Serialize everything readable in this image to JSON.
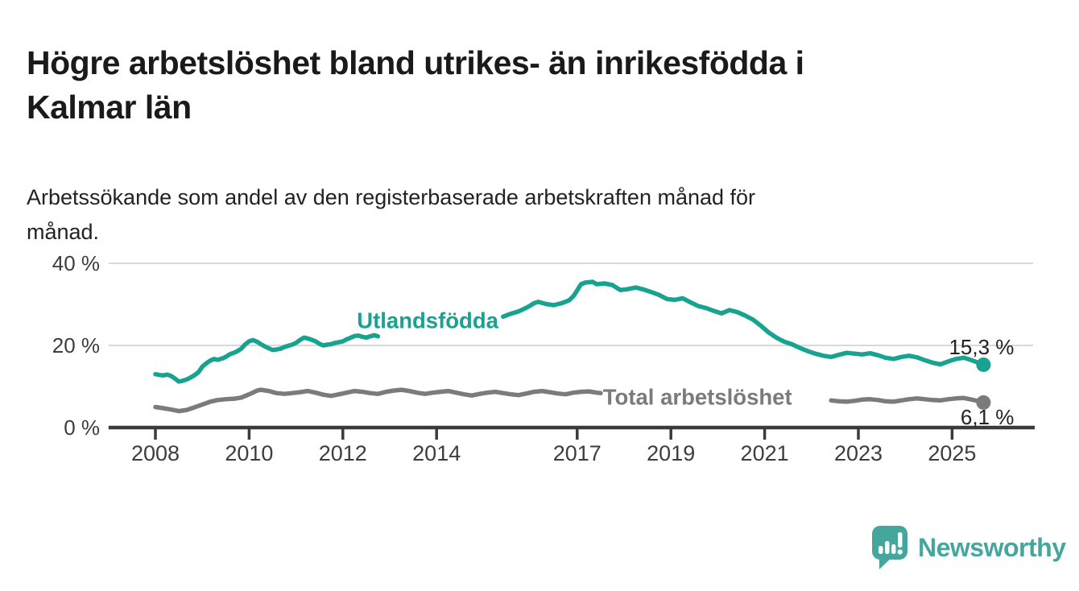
{
  "header": {
    "title_lines": [
      "Högre arbetslöshet bland utrikes- än inrikesfödda i",
      "Kalmar län"
    ],
    "subtitle_lines": [
      "Arbetssökande som andel av den registerbaserade arbetskraften månad för",
      "månad."
    ]
  },
  "colors": {
    "teal_line": "#17a38f",
    "gray_line": "#7b7b7e",
    "axis": "#3b3b3b",
    "grid": "#d9d9d9",
    "tick_label": "#3d3d3d",
    "value_label": "#222222",
    "logo": "#45a69d"
  },
  "chart_data": {
    "type": "line",
    "title": "Högre arbetslöshet bland utrikes- än inrikesfödda i Kalmar län",
    "subtitle": "Arbetssökande som andel av den registerbaserade arbetskraften månad för månad.",
    "unit": "%",
    "grid": "horizontal-only",
    "legend_position": "inline-labels-on-lines",
    "xlim": [
      2007.0,
      2026.8
    ],
    "ylim": [
      0,
      42
    ],
    "yticks": [
      {
        "value": 0,
        "label": "0 %"
      },
      {
        "value": 20,
        "label": "20 %"
      },
      {
        "value": 40,
        "label": "40 %"
      }
    ],
    "xticks": [
      {
        "value": 2008,
        "label": "2008"
      },
      {
        "value": 2010,
        "label": "2010"
      },
      {
        "value": 2012,
        "label": "2012"
      },
      {
        "value": 2014,
        "label": "2014"
      },
      {
        "value": 2017,
        "label": "2017"
      },
      {
        "value": 2019,
        "label": "2019"
      },
      {
        "value": 2021,
        "label": "2021"
      },
      {
        "value": 2023,
        "label": "2023"
      },
      {
        "value": 2025,
        "label": "2025"
      }
    ],
    "series": [
      {
        "name": "Utlandsfödda",
        "color": "#17a38f",
        "end_label": "15,3 %",
        "end_value": 15.3,
        "end_label_pos": "above",
        "label_x": 2012.3,
        "label_y": 24.2,
        "segments": [
          [
            [
              2008,
              13
            ],
            [
              2008.08,
              12.8
            ],
            [
              2008.17,
              12.7
            ],
            [
              2008.25,
              12.9
            ],
            [
              2008.33,
              12.6
            ],
            [
              2008.42,
              11.9
            ],
            [
              2008.5,
              11.2
            ],
            [
              2008.58,
              11.4
            ],
            [
              2008.67,
              11.7
            ],
            [
              2008.75,
              12.2
            ],
            [
              2008.83,
              12.7
            ],
            [
              2008.92,
              13.5
            ],
            [
              2009,
              14.8
            ],
            [
              2009.08,
              15.6
            ],
            [
              2009.17,
              16.3
            ],
            [
              2009.25,
              16.7
            ],
            [
              2009.33,
              16.5
            ],
            [
              2009.42,
              16.8
            ],
            [
              2009.5,
              17.2
            ],
            [
              2009.58,
              17.8
            ],
            [
              2009.67,
              18.2
            ],
            [
              2009.75,
              18.6
            ],
            [
              2009.83,
              19.2
            ],
            [
              2009.92,
              20.3
            ],
            [
              2010,
              21
            ],
            [
              2010.08,
              21.3
            ],
            [
              2010.17,
              20.9
            ],
            [
              2010.25,
              20.3
            ],
            [
              2010.33,
              19.8
            ],
            [
              2010.42,
              19.3
            ],
            [
              2010.5,
              18.9
            ],
            [
              2010.58,
              19
            ],
            [
              2010.67,
              19.2
            ],
            [
              2010.75,
              19.6
            ],
            [
              2010.83,
              19.9
            ],
            [
              2010.92,
              20.2
            ],
            [
              2011,
              20.6
            ],
            [
              2011.08,
              21.3
            ],
            [
              2011.17,
              21.9
            ],
            [
              2011.25,
              21.7
            ],
            [
              2011.33,
              21.4
            ],
            [
              2011.42,
              21
            ],
            [
              2011.5,
              20.4
            ],
            [
              2011.58,
              20
            ],
            [
              2011.67,
              20.2
            ],
            [
              2011.75,
              20.3
            ],
            [
              2011.83,
              20.6
            ],
            [
              2011.92,
              20.8
            ],
            [
              2012,
              21
            ],
            [
              2012.08,
              21.5
            ],
            [
              2012.17,
              21.9
            ],
            [
              2012.25,
              22.3
            ],
            [
              2012.33,
              22.4
            ],
            [
              2012.42,
              22.1
            ],
            [
              2012.5,
              21.9
            ],
            [
              2012.58,
              22.2
            ],
            [
              2012.67,
              22.5
            ],
            [
              2012.75,
              22.2
            ]
          ],
          [
            [
              2015.42,
              27
            ],
            [
              2015.58,
              27.7
            ],
            [
              2015.75,
              28.3
            ],
            [
              2015.92,
              29.2
            ],
            [
              2016,
              29.7
            ],
            [
              2016.08,
              30.3
            ],
            [
              2016.17,
              30.6
            ],
            [
              2016.33,
              30.1
            ],
            [
              2016.5,
              29.8
            ],
            [
              2016.67,
              30.3
            ],
            [
              2016.83,
              31
            ],
            [
              2016.92,
              32
            ],
            [
              2017,
              33.4
            ],
            [
              2017.08,
              34.9
            ],
            [
              2017.17,
              35.3
            ],
            [
              2017.33,
              35.5
            ],
            [
              2017.42,
              34.9
            ],
            [
              2017.58,
              35.1
            ],
            [
              2017.75,
              34.7
            ],
            [
              2017.92,
              33.5
            ],
            [
              2018.08,
              33.7
            ],
            [
              2018.25,
              34.1
            ],
            [
              2018.42,
              33.6
            ],
            [
              2018.58,
              33
            ],
            [
              2018.75,
              32.3
            ],
            [
              2018.92,
              31.3
            ],
            [
              2019.08,
              31.1
            ],
            [
              2019.25,
              31.5
            ],
            [
              2019.42,
              30.5
            ],
            [
              2019.58,
              29.6
            ],
            [
              2019.75,
              29.1
            ],
            [
              2019.92,
              28.4
            ],
            [
              2020.08,
              27.8
            ],
            [
              2020.25,
              28.6
            ],
            [
              2020.42,
              28.1
            ],
            [
              2020.58,
              27.3
            ],
            [
              2020.75,
              26.3
            ],
            [
              2020.92,
              24.8
            ],
            [
              2021.08,
              23.2
            ],
            [
              2021.25,
              21.9
            ],
            [
              2021.42,
              20.9
            ],
            [
              2021.58,
              20.3
            ],
            [
              2021.75,
              19.4
            ],
            [
              2021.92,
              18.6
            ],
            [
              2022.08,
              18
            ],
            [
              2022.25,
              17.5
            ],
            [
              2022.42,
              17.2
            ],
            [
              2022.58,
              17.7
            ],
            [
              2022.75,
              18.2
            ],
            [
              2022.92,
              18
            ],
            [
              2023.08,
              17.8
            ],
            [
              2023.25,
              18.1
            ],
            [
              2023.42,
              17.6
            ],
            [
              2023.58,
              17
            ],
            [
              2023.75,
              16.7
            ],
            [
              2023.92,
              17.2
            ],
            [
              2024.08,
              17.5
            ],
            [
              2024.25,
              17.1
            ],
            [
              2024.42,
              16.4
            ],
            [
              2024.58,
              15.8
            ],
            [
              2024.75,
              15.4
            ],
            [
              2024.92,
              16.1
            ],
            [
              2025.08,
              16.7
            ],
            [
              2025.25,
              17
            ],
            [
              2025.42,
              16.4
            ],
            [
              2025.58,
              15.7
            ],
            [
              2025.67,
              15.3
            ]
          ]
        ]
      },
      {
        "name": "Total arbetslöshet",
        "color": "#7b7b7e",
        "end_label": "6,1 %",
        "end_value": 6.1,
        "end_label_pos": "below",
        "label_x": 2017.55,
        "label_y": 5.6,
        "segments": [
          [
            [
              2008,
              5
            ],
            [
              2008.17,
              4.7
            ],
            [
              2008.33,
              4.4
            ],
            [
              2008.5,
              4
            ],
            [
              2008.67,
              4.3
            ],
            [
              2008.83,
              4.9
            ],
            [
              2009,
              5.6
            ],
            [
              2009.17,
              6.3
            ],
            [
              2009.33,
              6.7
            ],
            [
              2009.5,
              6.9
            ],
            [
              2009.67,
              7
            ],
            [
              2009.83,
              7.3
            ],
            [
              2010,
              8.1
            ],
            [
              2010.17,
              9
            ],
            [
              2010.25,
              9.2
            ],
            [
              2010.42,
              8.9
            ],
            [
              2010.58,
              8.4
            ],
            [
              2010.75,
              8.2
            ],
            [
              2010.92,
              8.4
            ],
            [
              2011.08,
              8.6
            ],
            [
              2011.25,
              8.9
            ],
            [
              2011.42,
              8.5
            ],
            [
              2011.58,
              8
            ],
            [
              2011.75,
              7.7
            ],
            [
              2011.92,
              8.1
            ],
            [
              2012.08,
              8.5
            ],
            [
              2012.25,
              8.9
            ],
            [
              2012.42,
              8.7
            ],
            [
              2012.58,
              8.4
            ],
            [
              2012.75,
              8.2
            ],
            [
              2012.92,
              8.7
            ],
            [
              2013.08,
              9
            ],
            [
              2013.25,
              9.2
            ],
            [
              2013.42,
              8.9
            ],
            [
              2013.58,
              8.5
            ],
            [
              2013.75,
              8.2
            ],
            [
              2013.92,
              8.5
            ],
            [
              2014.08,
              8.7
            ],
            [
              2014.25,
              8.9
            ],
            [
              2014.42,
              8.5
            ],
            [
              2014.58,
              8.1
            ],
            [
              2014.75,
              7.8
            ],
            [
              2014.92,
              8.2
            ],
            [
              2015.08,
              8.5
            ],
            [
              2015.25,
              8.7
            ],
            [
              2015.42,
              8.4
            ],
            [
              2015.58,
              8.1
            ],
            [
              2015.75,
              7.9
            ],
            [
              2015.92,
              8.3
            ],
            [
              2016.08,
              8.7
            ],
            [
              2016.25,
              8.9
            ],
            [
              2016.42,
              8.6
            ],
            [
              2016.58,
              8.3
            ],
            [
              2016.75,
              8.1
            ],
            [
              2016.92,
              8.5
            ],
            [
              2017.08,
              8.7
            ],
            [
              2017.25,
              8.8
            ],
            [
              2017.42,
              8.5
            ],
            [
              2017.5,
              8.4
            ]
          ],
          [
            [
              2022.42,
              6.6
            ],
            [
              2022.58,
              6.4
            ],
            [
              2022.75,
              6.3
            ],
            [
              2022.92,
              6.5
            ],
            [
              2023.08,
              6.8
            ],
            [
              2023.25,
              6.9
            ],
            [
              2023.42,
              6.7
            ],
            [
              2023.58,
              6.4
            ],
            [
              2023.75,
              6.3
            ],
            [
              2023.92,
              6.6
            ],
            [
              2024.08,
              6.9
            ],
            [
              2024.25,
              7.1
            ],
            [
              2024.42,
              6.9
            ],
            [
              2024.58,
              6.7
            ],
            [
              2024.75,
              6.6
            ],
            [
              2024.92,
              6.9
            ],
            [
              2025.08,
              7.1
            ],
            [
              2025.25,
              7.2
            ],
            [
              2025.42,
              6.8
            ],
            [
              2025.58,
              6.4
            ],
            [
              2025.67,
              6.1
            ]
          ]
        ]
      }
    ]
  },
  "footer": {
    "brand": "Newsworthy"
  }
}
